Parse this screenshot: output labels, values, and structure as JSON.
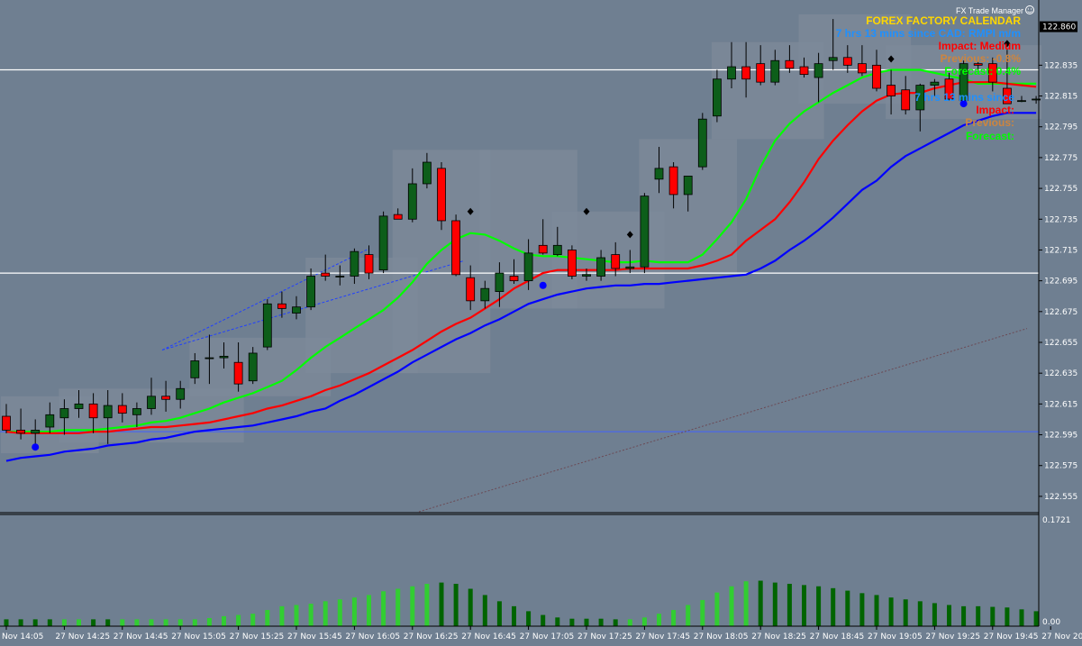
{
  "colors": {
    "background": "#6f7f91",
    "box_fill": "#7d8a99",
    "bull_candle": "#0d5e1a",
    "bear_candle": "#ff0000",
    "ma_fast": "#00ff00",
    "ma_mid": "#ff0000",
    "ma_slow": "#0000ff",
    "hist_bright": "#32cd32",
    "hist_dark": "#006400",
    "level_line": "#ffffff",
    "blue_level": "#4060ff",
    "dotted_trend": "#6b4a55"
  },
  "overlay": {
    "manager_title": "FX Trade Manager",
    "calendar_title": "FOREX FACTORY CALENDAR",
    "event_time": "7 hrs 13 mins since CAD: RMPI m/m",
    "impact": "Impact: Medium",
    "previous": "Previous: -0.8%",
    "forecast": "Forecast: 0.4%",
    "event2_time": "7 hrs 13 mins since",
    "impact2": "Impact:",
    "previous2": "Previous:",
    "forecast2": "Forecast:",
    "calendar_title_color": "#ffd700",
    "event_time_color": "#1e90ff",
    "impact_color": "#ff0000",
    "previous_color": "#cd853f",
    "forecast_color": "#00ff00"
  },
  "chart_data": [
    {
      "type": "candlestick",
      "title": "",
      "ylim": [
        122.545,
        122.875
      ],
      "y_ticks": [
        "122.555",
        "122.575",
        "122.595",
        "122.615",
        "122.635",
        "122.655",
        "122.675",
        "122.695",
        "122.715",
        "122.735",
        "122.755",
        "122.775",
        "122.795",
        "122.815",
        "122.835"
      ],
      "current_price": "122.860",
      "x_tick_labels": [
        "27 Nov 14:05",
        "27 Nov 14:25",
        "27 Nov 14:45",
        "27 Nov 15:05",
        "27 Nov 15:25",
        "27 Nov 15:45",
        "27 Nov 16:05",
        "27 Nov 16:25",
        "27 Nov 16:45",
        "27 Nov 17:05",
        "27 Nov 17:25",
        "27 Nov 17:45",
        "27 Nov 18:05",
        "27 Nov 18:25",
        "27 Nov 18:45",
        "27 Nov 19:05",
        "27 Nov 19:25",
        "27 Nov 19:45",
        "27 Nov 20:05"
      ],
      "x_tick_first_label": "Nov 14:05",
      "horizontal_levels": [
        122.832,
        122.7
      ],
      "blue_level": 122.597,
      "candles": [
        {
          "o": 122.607,
          "h": 122.615,
          "l": 122.596,
          "c": 122.598
        },
        {
          "o": 122.598,
          "h": 122.612,
          "l": 122.592,
          "c": 122.596
        },
        {
          "o": 122.596,
          "h": 122.605,
          "l": 122.589,
          "c": 122.598
        },
        {
          "o": 122.6,
          "h": 122.616,
          "l": 122.596,
          "c": 122.608
        },
        {
          "o": 122.606,
          "h": 122.618,
          "l": 122.595,
          "c": 122.612
        },
        {
          "o": 122.612,
          "h": 122.624,
          "l": 122.606,
          "c": 122.615
        },
        {
          "o": 122.615,
          "h": 122.622,
          "l": 122.596,
          "c": 122.606
        },
        {
          "o": 122.606,
          "h": 122.624,
          "l": 122.589,
          "c": 122.614
        },
        {
          "o": 122.614,
          "h": 122.622,
          "l": 122.603,
          "c": 122.609
        },
        {
          "o": 122.608,
          "h": 122.616,
          "l": 122.6,
          "c": 122.612
        },
        {
          "o": 122.612,
          "h": 122.632,
          "l": 122.608,
          "c": 122.62
        },
        {
          "o": 122.62,
          "h": 122.63,
          "l": 122.61,
          "c": 122.618
        },
        {
          "o": 122.618,
          "h": 122.63,
          "l": 122.612,
          "c": 122.625
        },
        {
          "o": 122.632,
          "h": 122.648,
          "l": 122.628,
          "c": 122.643
        },
        {
          "o": 122.645,
          "h": 122.66,
          "l": 122.628,
          "c": 122.645
        },
        {
          "o": 122.645,
          "h": 122.655,
          "l": 122.638,
          "c": 122.646
        },
        {
          "o": 122.642,
          "h": 122.655,
          "l": 122.623,
          "c": 122.628
        },
        {
          "o": 122.63,
          "h": 122.652,
          "l": 122.628,
          "c": 122.648
        },
        {
          "o": 122.652,
          "h": 122.683,
          "l": 122.65,
          "c": 122.68
        },
        {
          "o": 122.68,
          "h": 122.688,
          "l": 122.671,
          "c": 122.677
        },
        {
          "o": 122.674,
          "h": 122.685,
          "l": 122.67,
          "c": 122.678
        },
        {
          "o": 122.678,
          "h": 122.703,
          "l": 122.676,
          "c": 122.698
        },
        {
          "o": 122.7,
          "h": 122.712,
          "l": 122.695,
          "c": 122.698
        },
        {
          "o": 122.698,
          "h": 122.705,
          "l": 122.692,
          "c": 122.698
        },
        {
          "o": 122.698,
          "h": 122.716,
          "l": 122.693,
          "c": 122.714
        },
        {
          "o": 122.712,
          "h": 122.718,
          "l": 122.696,
          "c": 122.7
        },
        {
          "o": 122.702,
          "h": 122.74,
          "l": 122.7,
          "c": 122.737
        },
        {
          "o": 122.738,
          "h": 122.742,
          "l": 122.735,
          "c": 122.735
        },
        {
          "o": 122.735,
          "h": 122.768,
          "l": 122.733,
          "c": 122.758
        },
        {
          "o": 122.758,
          "h": 122.778,
          "l": 122.755,
          "c": 122.772
        },
        {
          "o": 122.768,
          "h": 122.772,
          "l": 122.728,
          "c": 122.734
        },
        {
          "o": 122.734,
          "h": 122.738,
          "l": 122.698,
          "c": 122.699
        },
        {
          "o": 122.697,
          "h": 122.705,
          "l": 122.676,
          "c": 122.682
        },
        {
          "o": 122.682,
          "h": 122.695,
          "l": 122.677,
          "c": 122.69
        },
        {
          "o": 122.688,
          "h": 122.707,
          "l": 122.678,
          "c": 122.7
        },
        {
          "o": 122.698,
          "h": 122.709,
          "l": 122.693,
          "c": 122.695
        },
        {
          "o": 122.695,
          "h": 122.722,
          "l": 122.689,
          "c": 122.713
        },
        {
          "o": 122.718,
          "h": 122.735,
          "l": 122.712,
          "c": 122.713
        },
        {
          "o": 122.712,
          "h": 122.73,
          "l": 122.711,
          "c": 122.718
        },
        {
          "o": 122.715,
          "h": 122.718,
          "l": 122.696,
          "c": 122.698
        },
        {
          "o": 122.698,
          "h": 122.703,
          "l": 122.695,
          "c": 122.699
        },
        {
          "o": 122.698,
          "h": 122.715,
          "l": 122.695,
          "c": 122.71
        },
        {
          "o": 122.712,
          "h": 122.72,
          "l": 122.698,
          "c": 122.703
        },
        {
          "o": 122.703,
          "h": 122.715,
          "l": 122.7,
          "c": 122.704
        },
        {
          "o": 122.704,
          "h": 122.752,
          "l": 122.7,
          "c": 122.75
        },
        {
          "o": 122.761,
          "h": 122.782,
          "l": 122.752,
          "c": 122.768
        },
        {
          "o": 122.769,
          "h": 122.772,
          "l": 122.742,
          "c": 122.751
        },
        {
          "o": 122.751,
          "h": 122.763,
          "l": 122.74,
          "c": 122.763
        },
        {
          "o": 122.769,
          "h": 122.804,
          "l": 122.767,
          "c": 122.8
        },
        {
          "o": 122.802,
          "h": 122.832,
          "l": 122.798,
          "c": 122.826
        },
        {
          "o": 122.826,
          "h": 122.85,
          "l": 122.82,
          "c": 122.834
        },
        {
          "o": 122.834,
          "h": 122.85,
          "l": 122.814,
          "c": 122.826
        },
        {
          "o": 122.836,
          "h": 122.848,
          "l": 122.822,
          "c": 122.824
        },
        {
          "o": 122.824,
          "h": 122.845,
          "l": 122.822,
          "c": 122.838
        },
        {
          "o": 122.838,
          "h": 122.848,
          "l": 122.83,
          "c": 122.833
        },
        {
          "o": 122.834,
          "h": 122.84,
          "l": 122.827,
          "c": 122.829
        },
        {
          "o": 122.827,
          "h": 122.843,
          "l": 122.811,
          "c": 122.836
        },
        {
          "o": 122.838,
          "h": 122.865,
          "l": 122.832,
          "c": 122.84
        },
        {
          "o": 122.84,
          "h": 122.848,
          "l": 122.83,
          "c": 122.835
        },
        {
          "o": 122.836,
          "h": 122.848,
          "l": 122.828,
          "c": 122.83
        },
        {
          "o": 122.835,
          "h": 122.845,
          "l": 122.818,
          "c": 122.82
        },
        {
          "o": 122.822,
          "h": 122.832,
          "l": 122.803,
          "c": 122.815
        },
        {
          "o": 122.819,
          "h": 122.828,
          "l": 122.803,
          "c": 122.806
        },
        {
          "o": 122.806,
          "h": 122.823,
          "l": 122.792,
          "c": 122.822
        },
        {
          "o": 122.822,
          "h": 122.826,
          "l": 122.815,
          "c": 122.824
        },
        {
          "o": 122.826,
          "h": 122.83,
          "l": 122.812,
          "c": 122.813
        },
        {
          "o": 122.812,
          "h": 122.838,
          "l": 122.808,
          "c": 122.836
        },
        {
          "o": 122.836,
          "h": 122.838,
          "l": 122.832,
          "c": 122.835
        },
        {
          "o": 122.836,
          "h": 122.84,
          "l": 122.818,
          "c": 122.824
        },
        {
          "o": 122.82,
          "h": 122.845,
          "l": 122.81,
          "c": 122.81
        },
        {
          "o": 122.812,
          "h": 122.815,
          "l": 122.811,
          "c": 122.812
        },
        {
          "o": 122.813,
          "h": 122.815,
          "l": 122.81,
          "c": 122.813
        }
      ],
      "series": [
        {
          "values": [
            122.597,
            122.597,
            122.597,
            122.597,
            122.598,
            122.598,
            122.598,
            122.599,
            122.6,
            122.601,
            122.603,
            122.604,
            122.606,
            122.609,
            122.612,
            122.616,
            122.619,
            122.622,
            122.626,
            122.63,
            122.637,
            122.645,
            122.652,
            122.658,
            122.664,
            122.67,
            122.676,
            122.684,
            122.694,
            122.706,
            122.715,
            122.722,
            122.726,
            122.725,
            122.721,
            122.716,
            122.712,
            122.711,
            122.711,
            122.71,
            122.709,
            122.708,
            122.707,
            122.707,
            122.708,
            122.707,
            122.707,
            122.707,
            122.712,
            122.722,
            122.733,
            122.748,
            122.769,
            122.786,
            122.797,
            122.805,
            122.811,
            122.817,
            122.822,
            122.827,
            122.83,
            122.832,
            122.832,
            122.832,
            122.83,
            122.828,
            122.826,
            122.823,
            122.823,
            122.823,
            122.823,
            122.823
          ]
        },
        {
          "values": [
            122.597,
            122.596,
            122.596,
            122.596,
            122.596,
            122.596,
            122.597,
            122.597,
            122.598,
            122.599,
            122.6,
            122.6,
            122.601,
            122.602,
            122.603,
            122.605,
            122.607,
            122.609,
            122.612,
            122.614,
            122.617,
            122.62,
            122.624,
            122.627,
            122.631,
            122.635,
            122.64,
            122.645,
            122.65,
            122.656,
            122.662,
            122.667,
            122.671,
            122.677,
            122.683,
            122.69,
            122.695,
            122.7,
            122.702,
            122.702,
            122.702,
            122.702,
            122.702,
            122.703,
            122.703,
            122.703,
            122.703,
            122.703,
            122.705,
            122.708,
            122.712,
            122.721,
            122.728,
            122.735,
            122.746,
            122.759,
            122.774,
            122.786,
            122.796,
            122.805,
            122.812,
            122.816,
            122.817,
            122.817,
            122.82,
            122.822,
            122.824,
            122.824,
            122.824,
            122.823,
            122.822,
            122.821
          ]
        },
        {
          "values": [
            122.578,
            122.58,
            122.581,
            122.582,
            122.584,
            122.585,
            122.586,
            122.588,
            122.589,
            122.59,
            122.592,
            122.593,
            122.595,
            122.597,
            122.598,
            122.599,
            122.6,
            122.601,
            122.603,
            122.605,
            122.607,
            122.61,
            122.612,
            122.617,
            122.621,
            122.626,
            122.631,
            122.636,
            122.642,
            122.647,
            122.652,
            122.657,
            122.661,
            122.666,
            122.67,
            122.675,
            122.68,
            122.683,
            122.686,
            122.688,
            122.69,
            122.691,
            122.692,
            122.692,
            122.693,
            122.693,
            122.694,
            122.695,
            122.696,
            122.697,
            122.698,
            122.699,
            122.703,
            122.708,
            122.715,
            122.721,
            122.728,
            122.736,
            122.745,
            122.754,
            122.76,
            122.769,
            122.776,
            122.781,
            122.786,
            122.791,
            122.796,
            122.799,
            122.802,
            122.804,
            122.804,
            122.804
          ]
        }
      ],
      "boxes": [
        {
          "x0": 0,
          "x1": 6,
          "y0": 122.583,
          "y1": 122.62
        },
        {
          "x0": 4,
          "x1": 16,
          "y0": 122.59,
          "y1": 122.625
        },
        {
          "x0": 13,
          "x1": 22,
          "y0": 122.62,
          "y1": 122.658
        },
        {
          "x0": 21,
          "x1": 28,
          "y0": 122.635,
          "y1": 122.71
        },
        {
          "x0": 27,
          "x1": 33,
          "y0": 122.635,
          "y1": 122.78
        },
        {
          "x0": 33,
          "x1": 39,
          "y0": 122.677,
          "y1": 122.78
        },
        {
          "x0": 38,
          "x1": 45,
          "y0": 122.677,
          "y1": 122.74
        },
        {
          "x0": 44,
          "x1": 50,
          "y0": 122.7,
          "y1": 122.787
        },
        {
          "x0": 49,
          "x1": 56,
          "y0": 122.787,
          "y1": 122.85
        },
        {
          "x0": 55,
          "x1": 62,
          "y0": 122.81,
          "y1": 122.868
        },
        {
          "x0": 61,
          "x1": 71,
          "y0": 122.8,
          "y1": 122.848
        }
      ]
    },
    {
      "type": "bar",
      "title": "",
      "ylim": [
        0,
        0.1721
      ],
      "y_ticks": [
        "0.1721",
        "0.00"
      ],
      "y_bottom_label": "0.00",
      "values": [
        0.011,
        0.011,
        0.011,
        0.011,
        0.011,
        0.011,
        0.011,
        0.011,
        0.011,
        0.011,
        0.011,
        0.011,
        0.011,
        0.011,
        0.013,
        0.016,
        0.018,
        0.02,
        0.026,
        0.032,
        0.034,
        0.036,
        0.04,
        0.043,
        0.046,
        0.05,
        0.056,
        0.06,
        0.064,
        0.068,
        0.07,
        0.068,
        0.06,
        0.05,
        0.04,
        0.032,
        0.024,
        0.018,
        0.014,
        0.012,
        0.012,
        0.012,
        0.011,
        0.011,
        0.014,
        0.02,
        0.026,
        0.034,
        0.042,
        0.054,
        0.064,
        0.072,
        0.073,
        0.07,
        0.068,
        0.066,
        0.064,
        0.061,
        0.057,
        0.053,
        0.05,
        0.046,
        0.043,
        0.04,
        0.037,
        0.034,
        0.032,
        0.032,
        0.031,
        0.03,
        0.027,
        0.024
      ],
      "bright": [
        0,
        0,
        0,
        0,
        1,
        1,
        0,
        0,
        1,
        1,
        1,
        1,
        1,
        1,
        1,
        1,
        1,
        1,
        1,
        1,
        1,
        1,
        1,
        1,
        1,
        1,
        1,
        1,
        1,
        1,
        0,
        0,
        0,
        0,
        0,
        0,
        0,
        0,
        0,
        0,
        0,
        0,
        0,
        1,
        1,
        1,
        1,
        1,
        1,
        1,
        1,
        1,
        0,
        0,
        0,
        0,
        0,
        0,
        0,
        0,
        0,
        0,
        0,
        0,
        0,
        0,
        0,
        0,
        0,
        0,
        0,
        0
      ]
    }
  ]
}
